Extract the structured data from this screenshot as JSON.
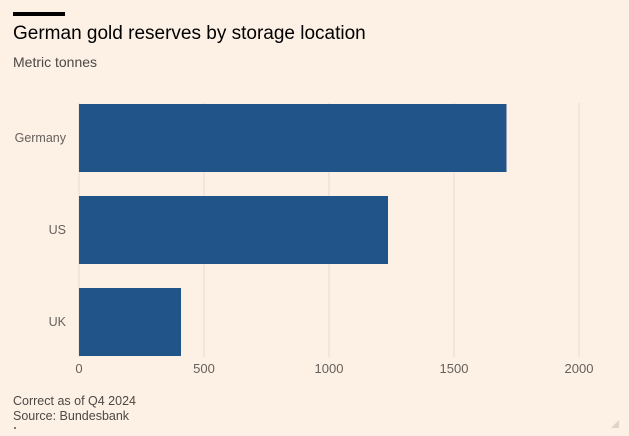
{
  "header": {
    "title": "German gold reserves by storage location",
    "subtitle": "Metric tonnes"
  },
  "footer": {
    "note": "Correct as of Q4 2024",
    "source": "Source: Bundesbank"
  },
  "colors": {
    "bar": "#215589",
    "grid": "#e6dbd1",
    "background": "#fdf1e6",
    "tick_text": "#66605c"
  },
  "chart_data": {
    "type": "bar",
    "orientation": "horizontal",
    "title": "German gold reserves by storage location",
    "subtitle": "Metric tonnes",
    "categories": [
      "Germany",
      "US",
      "UK"
    ],
    "values": [
      1710,
      1236,
      408
    ],
    "xlim": [
      0,
      2000
    ],
    "xticks": [
      0,
      500,
      1000,
      1500,
      2000
    ],
    "xlabel": "",
    "ylabel": "",
    "grid": true
  }
}
